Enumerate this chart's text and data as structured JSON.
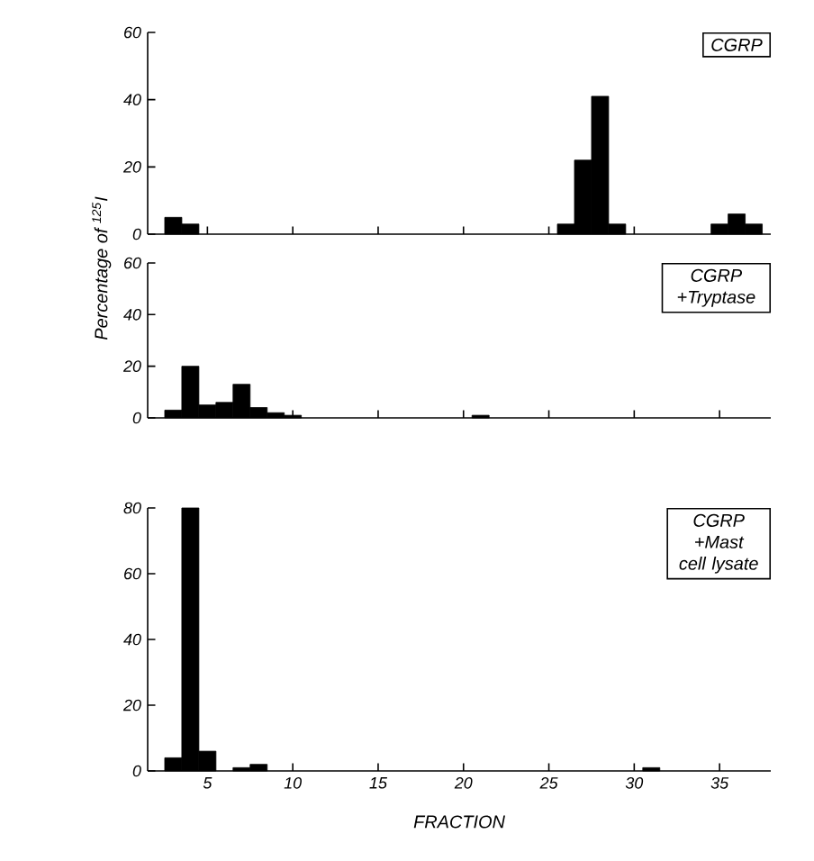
{
  "chart_data": [
    {
      "type": "bar",
      "title": "CGRP",
      "x": [
        3,
        4,
        26,
        27,
        28,
        29,
        35,
        36,
        37
      ],
      "values": [
        5,
        3,
        3,
        22,
        41,
        3,
        3,
        6,
        3
      ],
      "color": "#000000",
      "xlim": [
        1.5,
        38
      ],
      "ylim": [
        0,
        60
      ],
      "xticks": [
        5,
        10,
        15,
        20,
        25,
        30,
        35
      ],
      "yticks": [
        0,
        20,
        40,
        60
      ],
      "tick_labels": "y"
    },
    {
      "type": "bar",
      "title": "CGRP +Tryptase",
      "ylabel": "Percentage of $^{125}$I",
      "x": [
        3,
        4,
        5,
        6,
        7,
        8,
        9,
        10,
        21
      ],
      "values": [
        3,
        20,
        5,
        6,
        13,
        4,
        2,
        1,
        1
      ],
      "color": "#000000",
      "xlim": [
        1.5,
        38
      ],
      "ylim": [
        0,
        60
      ],
      "xticks": [
        5,
        10,
        15,
        20,
        25,
        30,
        35
      ],
      "yticks": [
        0,
        20,
        40,
        60
      ],
      "tick_labels": "y"
    },
    {
      "type": "bar",
      "title": "CGRP +Mast cell lysate",
      "xlabel": "FRACTION",
      "x": [
        3,
        4,
        5,
        7,
        8,
        31
      ],
      "values": [
        4,
        80,
        6,
        1,
        2,
        1
      ],
      "color": "#000000",
      "xlim": [
        1.5,
        38
      ],
      "ylim": [
        0,
        80
      ],
      "xticks": [
        5,
        10,
        15,
        20,
        25,
        30,
        35
      ],
      "yticks": [
        0,
        20,
        40,
        60,
        80
      ]
    }
  ]
}
